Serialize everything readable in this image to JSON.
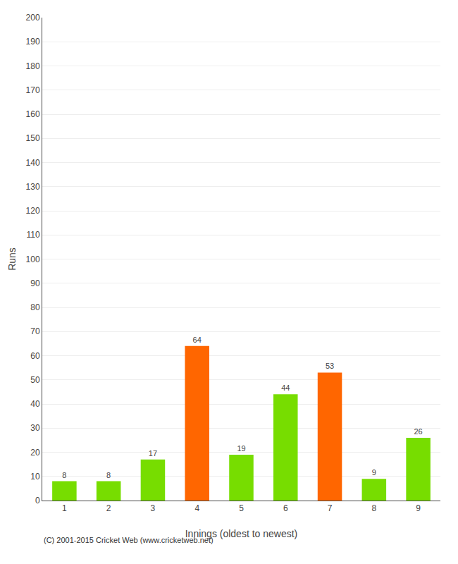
{
  "chart_data": {
    "type": "bar",
    "x": [
      1,
      2,
      3,
      4,
      5,
      6,
      7,
      8,
      9
    ],
    "values": [
      8,
      8,
      17,
      64,
      19,
      44,
      53,
      9,
      26
    ],
    "colors": [
      "#77dd00",
      "#77dd00",
      "#77dd00",
      "#ff6600",
      "#77dd00",
      "#77dd00",
      "#ff6600",
      "#77dd00",
      "#77dd00"
    ],
    "xlabel": "Innings (oldest to newest)",
    "ylabel": "Runs",
    "xlim": [
      0.5,
      9.5
    ],
    "xticks": [
      1,
      2,
      3,
      4,
      5,
      6,
      7,
      8,
      9
    ],
    "ylim": [
      0,
      200
    ],
    "yticks": [
      0,
      10,
      20,
      30,
      40,
      50,
      60,
      70,
      80,
      90,
      100,
      110,
      120,
      130,
      140,
      150,
      160,
      170,
      180,
      190,
      200
    ],
    "grid": "y",
    "data_labels": true,
    "annotations": [
      "(C) 2001-2015 Cricket Web (www.cricketweb.net)"
    ]
  }
}
